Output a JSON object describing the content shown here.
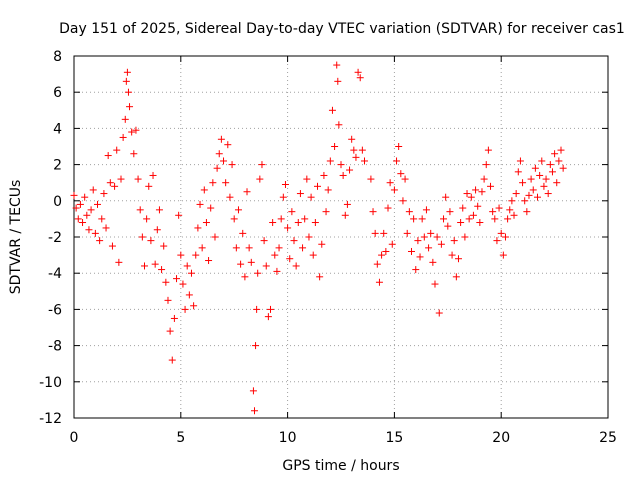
{
  "chart_data": {
    "type": "scatter",
    "title": "Day 151 of 2025, Sidereal Day-to-day VTEC variation (SDTVAR) for receiver cas1",
    "xlabel": "GPS time / hours",
    "ylabel": "SDTVAR / TECUs",
    "xlim": [
      0,
      25
    ],
    "ylim": [
      -12,
      8
    ],
    "xticks": [
      0,
      5,
      10,
      15,
      20,
      25
    ],
    "yticks": [
      -12,
      -10,
      -8,
      -6,
      -4,
      -2,
      0,
      2,
      4,
      6,
      8
    ],
    "grid": true,
    "marker": "plus",
    "color": "#ff0000",
    "series": [
      {
        "name": "SDTVAR",
        "points": [
          [
            0.0,
            0.3
          ],
          [
            0.1,
            -0.4
          ],
          [
            0.2,
            -1.0
          ],
          [
            0.3,
            -0.2
          ],
          [
            0.4,
            -1.2
          ],
          [
            0.5,
            0.2
          ],
          [
            0.6,
            -0.8
          ],
          [
            0.7,
            -1.6
          ],
          [
            0.8,
            -0.5
          ],
          [
            0.9,
            0.6
          ],
          [
            1.0,
            -1.8
          ],
          [
            1.1,
            -0.2
          ],
          [
            1.2,
            -2.2
          ],
          [
            1.3,
            -1.0
          ],
          [
            1.4,
            0.4
          ],
          [
            1.5,
            -1.5
          ],
          [
            1.6,
            2.5
          ],
          [
            1.7,
            1.0
          ],
          [
            1.8,
            -2.5
          ],
          [
            1.9,
            0.8
          ],
          [
            2.0,
            2.8
          ],
          [
            2.1,
            -3.4
          ],
          [
            2.2,
            1.2
          ],
          [
            2.3,
            3.5
          ],
          [
            2.4,
            4.5
          ],
          [
            2.45,
            6.6
          ],
          [
            2.5,
            7.1
          ],
          [
            2.55,
            6.0
          ],
          [
            2.6,
            5.2
          ],
          [
            2.7,
            3.8
          ],
          [
            2.8,
            2.6
          ],
          [
            2.9,
            3.9
          ],
          [
            3.0,
            1.2
          ],
          [
            3.1,
            -0.5
          ],
          [
            3.2,
            -2.0
          ],
          [
            3.3,
            -3.6
          ],
          [
            3.4,
            -1.0
          ],
          [
            3.5,
            0.8
          ],
          [
            3.6,
            -2.2
          ],
          [
            3.7,
            1.4
          ],
          [
            3.8,
            -3.5
          ],
          [
            3.9,
            -1.6
          ],
          [
            4.0,
            -0.5
          ],
          [
            4.1,
            -3.8
          ],
          [
            4.2,
            -2.5
          ],
          [
            4.3,
            -4.5
          ],
          [
            4.4,
            -5.5
          ],
          [
            4.5,
            -7.2
          ],
          [
            4.6,
            -8.8
          ],
          [
            4.7,
            -6.5
          ],
          [
            4.8,
            -4.3
          ],
          [
            4.9,
            -0.8
          ],
          [
            5.0,
            -3.0
          ],
          [
            5.1,
            -4.6
          ],
          [
            5.2,
            -6.0
          ],
          [
            5.3,
            -3.6
          ],
          [
            5.4,
            -5.2
          ],
          [
            5.5,
            -4.0
          ],
          [
            5.6,
            -5.8
          ],
          [
            5.7,
            -3.0
          ],
          [
            5.8,
            -1.5
          ],
          [
            5.9,
            -0.2
          ],
          [
            6.0,
            -2.6
          ],
          [
            6.1,
            0.6
          ],
          [
            6.2,
            -1.2
          ],
          [
            6.3,
            -3.3
          ],
          [
            6.4,
            -0.4
          ],
          [
            6.5,
            1.0
          ],
          [
            6.6,
            -2.0
          ],
          [
            6.7,
            1.8
          ],
          [
            6.8,
            2.6
          ],
          [
            6.9,
            3.4
          ],
          [
            7.0,
            2.2
          ],
          [
            7.1,
            1.0
          ],
          [
            7.2,
            3.1
          ],
          [
            7.3,
            0.2
          ],
          [
            7.4,
            2.0
          ],
          [
            7.5,
            -1.0
          ],
          [
            7.6,
            -2.6
          ],
          [
            7.7,
            -0.5
          ],
          [
            7.8,
            -3.5
          ],
          [
            7.9,
            -1.8
          ],
          [
            8.0,
            -4.2
          ],
          [
            8.1,
            0.5
          ],
          [
            8.2,
            -2.6
          ],
          [
            8.3,
            -3.4
          ],
          [
            8.4,
            -10.5
          ],
          [
            8.45,
            -11.6
          ],
          [
            8.5,
            -8.0
          ],
          [
            8.55,
            -6.0
          ],
          [
            8.6,
            -4.0
          ],
          [
            8.7,
            1.2
          ],
          [
            8.8,
            2.0
          ],
          [
            8.9,
            -2.2
          ],
          [
            9.0,
            -3.6
          ],
          [
            9.1,
            -6.4
          ],
          [
            9.2,
            -6.0
          ],
          [
            9.3,
            -1.2
          ],
          [
            9.4,
            -3.0
          ],
          [
            9.5,
            -3.9
          ],
          [
            9.6,
            -2.6
          ],
          [
            9.7,
            -1.0
          ],
          [
            9.8,
            0.2
          ],
          [
            9.9,
            0.9
          ],
          [
            10.0,
            -1.5
          ],
          [
            10.1,
            -3.2
          ],
          [
            10.2,
            -0.6
          ],
          [
            10.3,
            -2.2
          ],
          [
            10.4,
            -3.6
          ],
          [
            10.5,
            -1.2
          ],
          [
            10.6,
            0.4
          ],
          [
            10.7,
            -2.6
          ],
          [
            10.8,
            -1.0
          ],
          [
            10.9,
            1.2
          ],
          [
            11.0,
            -2.0
          ],
          [
            11.1,
            0.2
          ],
          [
            11.2,
            -3.0
          ],
          [
            11.3,
            -1.2
          ],
          [
            11.4,
            0.8
          ],
          [
            11.5,
            -4.2
          ],
          [
            11.6,
            -2.4
          ],
          [
            11.7,
            1.4
          ],
          [
            11.8,
            -0.6
          ],
          [
            11.9,
            0.6
          ],
          [
            12.0,
            2.2
          ],
          [
            12.1,
            5.0
          ],
          [
            12.2,
            3.0
          ],
          [
            12.3,
            7.5
          ],
          [
            12.35,
            6.6
          ],
          [
            12.4,
            4.2
          ],
          [
            12.5,
            2.0
          ],
          [
            12.6,
            1.4
          ],
          [
            12.7,
            -0.8
          ],
          [
            12.8,
            -0.2
          ],
          [
            12.9,
            1.7
          ],
          [
            13.0,
            3.4
          ],
          [
            13.1,
            2.8
          ],
          [
            13.2,
            2.4
          ],
          [
            13.3,
            7.1
          ],
          [
            13.4,
            6.8
          ],
          [
            13.5,
            2.8
          ],
          [
            13.6,
            2.2
          ],
          [
            13.9,
            1.2
          ],
          [
            14.0,
            -0.6
          ],
          [
            14.1,
            -1.8
          ],
          [
            14.2,
            -3.5
          ],
          [
            14.3,
            -4.5
          ],
          [
            14.4,
            -3.0
          ],
          [
            14.5,
            -1.8
          ],
          [
            14.6,
            -2.8
          ],
          [
            14.7,
            -0.4
          ],
          [
            14.8,
            1.0
          ],
          [
            14.9,
            -2.4
          ],
          [
            15.0,
            0.6
          ],
          [
            15.1,
            2.2
          ],
          [
            15.2,
            3.0
          ],
          [
            15.3,
            1.5
          ],
          [
            15.4,
            0.0
          ],
          [
            15.5,
            1.2
          ],
          [
            15.6,
            -1.8
          ],
          [
            15.7,
            -0.6
          ],
          [
            15.8,
            -2.8
          ],
          [
            15.9,
            -1.0
          ],
          [
            16.0,
            -3.8
          ],
          [
            16.1,
            -2.2
          ],
          [
            16.2,
            -3.1
          ],
          [
            16.3,
            -1.0
          ],
          [
            16.4,
            -2.0
          ],
          [
            16.5,
            -0.5
          ],
          [
            16.6,
            -2.6
          ],
          [
            16.7,
            -1.8
          ],
          [
            16.8,
            -3.4
          ],
          [
            16.9,
            -4.6
          ],
          [
            17.0,
            -2.0
          ],
          [
            17.1,
            -6.2
          ],
          [
            17.2,
            -2.4
          ],
          [
            17.3,
            -1.0
          ],
          [
            17.4,
            0.2
          ],
          [
            17.5,
            -1.4
          ],
          [
            17.6,
            -0.6
          ],
          [
            17.7,
            -3.0
          ],
          [
            17.8,
            -2.2
          ],
          [
            17.9,
            -4.2
          ],
          [
            18.0,
            -3.2
          ],
          [
            18.1,
            -1.2
          ],
          [
            18.2,
            -0.4
          ],
          [
            18.3,
            -2.0
          ],
          [
            18.4,
            0.4
          ],
          [
            18.5,
            -1.0
          ],
          [
            18.6,
            0.2
          ],
          [
            18.7,
            -0.8
          ],
          [
            18.8,
            0.6
          ],
          [
            18.9,
            -0.3
          ],
          [
            19.0,
            -1.2
          ],
          [
            19.1,
            0.5
          ],
          [
            19.2,
            1.2
          ],
          [
            19.3,
            2.0
          ],
          [
            19.4,
            2.8
          ],
          [
            19.5,
            0.8
          ],
          [
            19.6,
            -0.6
          ],
          [
            19.7,
            -1.0
          ],
          [
            19.8,
            -2.2
          ],
          [
            19.9,
            -0.4
          ],
          [
            20.0,
            -1.8
          ],
          [
            20.1,
            -3.0
          ],
          [
            20.2,
            -2.0
          ],
          [
            20.3,
            -1.0
          ],
          [
            20.4,
            -0.5
          ],
          [
            20.5,
            0.0
          ],
          [
            20.6,
            -0.8
          ],
          [
            20.7,
            0.4
          ],
          [
            20.8,
            1.6
          ],
          [
            20.9,
            2.2
          ],
          [
            21.0,
            1.0
          ],
          [
            21.1,
            0.0
          ],
          [
            21.2,
            -0.6
          ],
          [
            21.3,
            0.3
          ],
          [
            21.4,
            1.2
          ],
          [
            21.5,
            0.6
          ],
          [
            21.6,
            1.8
          ],
          [
            21.7,
            0.2
          ],
          [
            21.8,
            1.4
          ],
          [
            21.9,
            2.2
          ],
          [
            22.0,
            0.8
          ],
          [
            22.1,
            1.2
          ],
          [
            22.2,
            0.4
          ],
          [
            22.3,
            2.0
          ],
          [
            22.4,
            1.6
          ],
          [
            22.5,
            2.6
          ],
          [
            22.6,
            1.0
          ],
          [
            22.7,
            2.2
          ],
          [
            22.8,
            2.8
          ],
          [
            22.9,
            1.8
          ]
        ]
      }
    ]
  }
}
